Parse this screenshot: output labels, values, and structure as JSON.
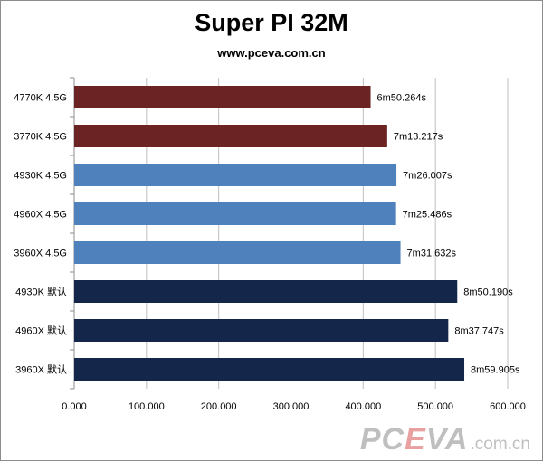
{
  "chart_data": {
    "type": "bar",
    "orientation": "horizontal",
    "title": "Super PI 32M",
    "subtitle": "www.pceva.com.cn",
    "categories": [
      "4770K 4.5G",
      "3770K 4.5G",
      "4930K 4.5G",
      "4960X 4.5G",
      "3960X 4.5G",
      "4930K 默认",
      "4960X 默认",
      "3960X 默认"
    ],
    "values": [
      410.264,
      433.217,
      446.007,
      445.486,
      451.632,
      530.19,
      517.747,
      539.905
    ],
    "data_labels": [
      "6m50.264s",
      "7m13.217s",
      "7m26.007s",
      "7m25.486s",
      "7m31.632s",
      "8m50.190s",
      "8m37.747s",
      "8m59.905s"
    ],
    "bar_colors": [
      "#6b2323",
      "#6b2323",
      "#4f81bd",
      "#4f81bd",
      "#4f81bd",
      "#14274a",
      "#14274a",
      "#14274a"
    ],
    "xlim": [
      0,
      600
    ],
    "xticks": [
      "0.000",
      "100.000",
      "200.000",
      "300.000",
      "400.000",
      "500.000",
      "600.000"
    ],
    "grid": true,
    "legend": "none"
  },
  "watermark": {
    "p1": "PC",
    "p2": "E",
    "p3": "VA",
    "domain": ".com.cn"
  }
}
